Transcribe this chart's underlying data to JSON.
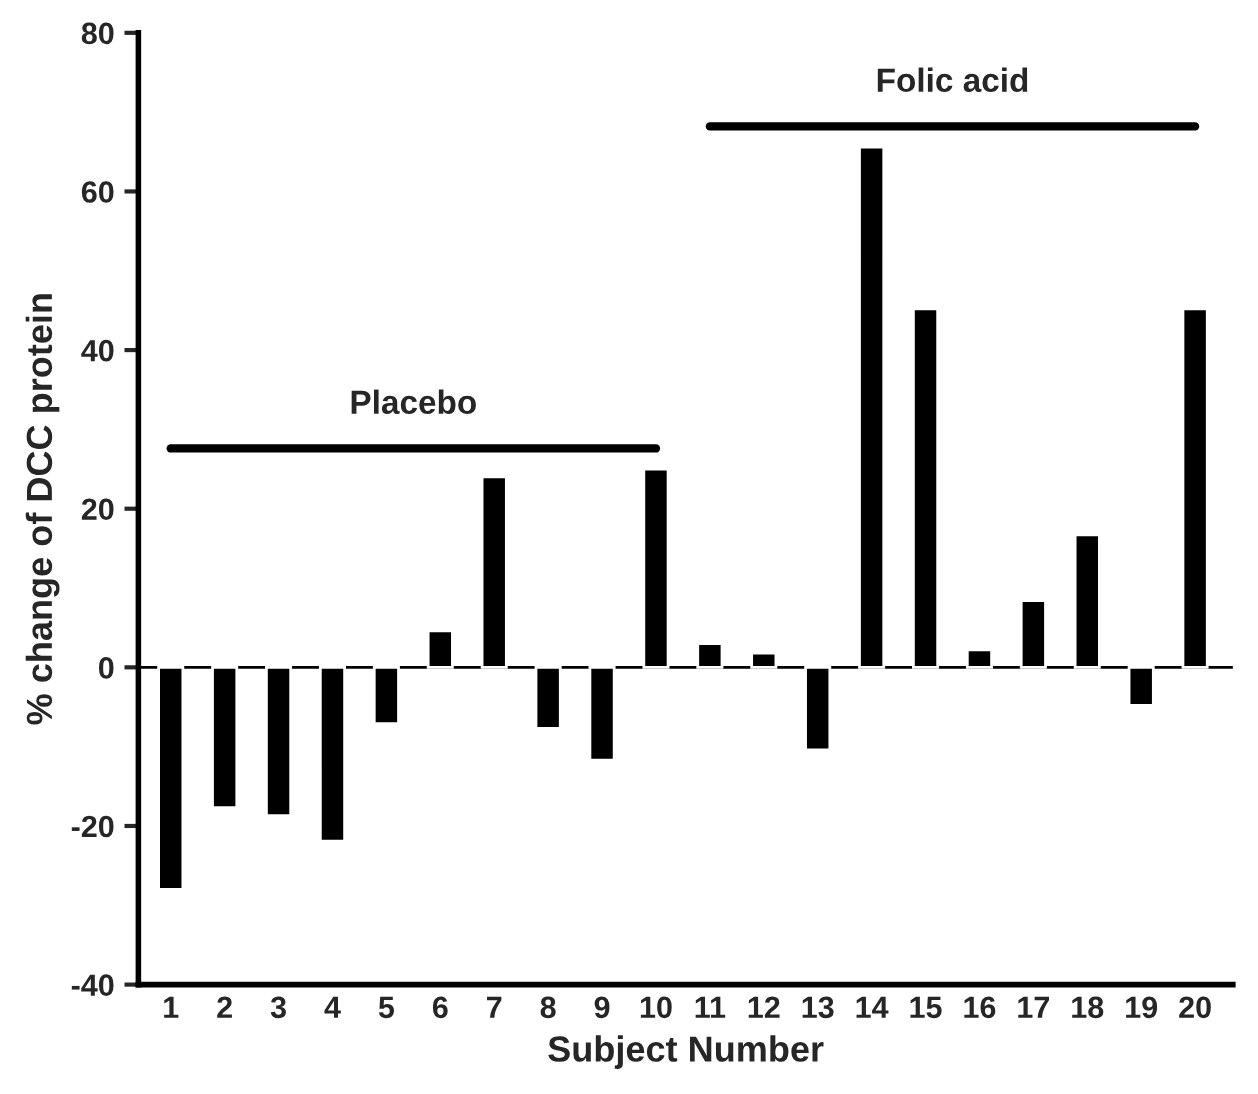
{
  "chart_data": {
    "type": "bar",
    "xlabel": "Subject Number",
    "ylabel": "% change of DCC protein",
    "categories": [
      "1",
      "2",
      "3",
      "4",
      "5",
      "6",
      "7",
      "8",
      "9",
      "10",
      "11",
      "12",
      "13",
      "14",
      "15",
      "16",
      "17",
      "18",
      "19",
      "20"
    ],
    "series": [
      {
        "color": "#000000",
        "values": [
          -28,
          -17.7,
          -18.7,
          -21.9,
          -7.1,
          4.6,
          24,
          -7.7,
          -11.7,
          25,
          3,
          1.8,
          -10.4,
          65.6,
          45.2,
          2.2,
          8.4,
          16.7,
          -4.8,
          45.2
        ]
      },
      {
        "type": "line",
        "name": "Placebo",
        "color": "#000000",
        "x": [
          "1",
          "10"
        ],
        "values": [
          27.6,
          27.6
        ]
      },
      {
        "type": "line",
        "name": "Folic acid",
        "color": "#000000",
        "x": [
          "11",
          "20"
        ],
        "values": [
          68.2,
          68.2
        ]
      }
    ],
    "ylim": [
      -40,
      80
    ],
    "yticks": [
      -40,
      -20,
      0,
      20,
      40,
      60,
      80
    ],
    "grid": false,
    "legend": false,
    "marker": "none",
    "line_style": "solid",
    "ref_lines": [
      {
        "axis": "y",
        "value": 0,
        "color": "#000000"
      }
    ]
  }
}
